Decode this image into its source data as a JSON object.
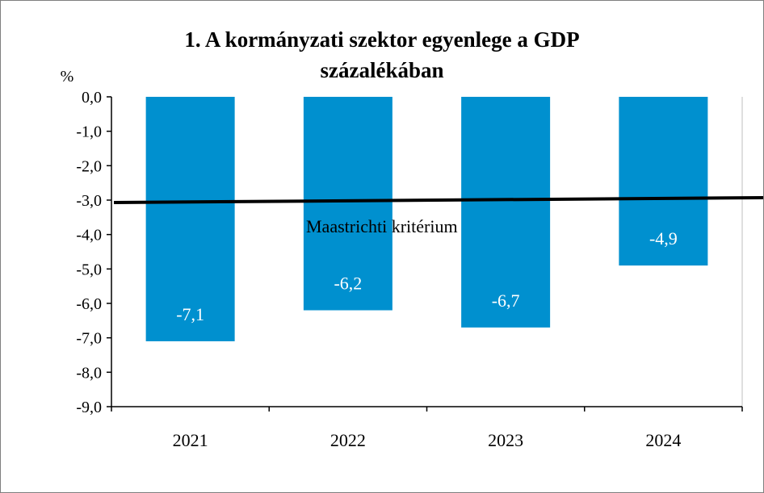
{
  "chart_data": {
    "type": "bar",
    "title_line1": "1. A kormányzati szektor egyenlege a GDP",
    "title_line2": "százalékában",
    "unit_label": "%",
    "categories": [
      "2021",
      "2022",
      "2023",
      "2024"
    ],
    "values": [
      -7.1,
      -6.2,
      -6.7,
      -4.9
    ],
    "data_labels": [
      "-7,1",
      "-6,2",
      "-6,7",
      "-4,9"
    ],
    "ylim": [
      -9,
      0
    ],
    "yticks": [
      0,
      -1,
      -2,
      -3,
      -4,
      -5,
      -6,
      -7,
      -8,
      -9
    ],
    "ytick_labels": [
      "0,0",
      "-1,0",
      "-2,0",
      "-3,0",
      "-4,0",
      "-5,0",
      "-6,0",
      "-7,0",
      "-8,0",
      "-9,0"
    ],
    "reference_line": {
      "value": -3.0,
      "label": "Maastrichti kritérium"
    },
    "grid": false,
    "bar_color": "#0090cf",
    "line_color": "#000000"
  }
}
